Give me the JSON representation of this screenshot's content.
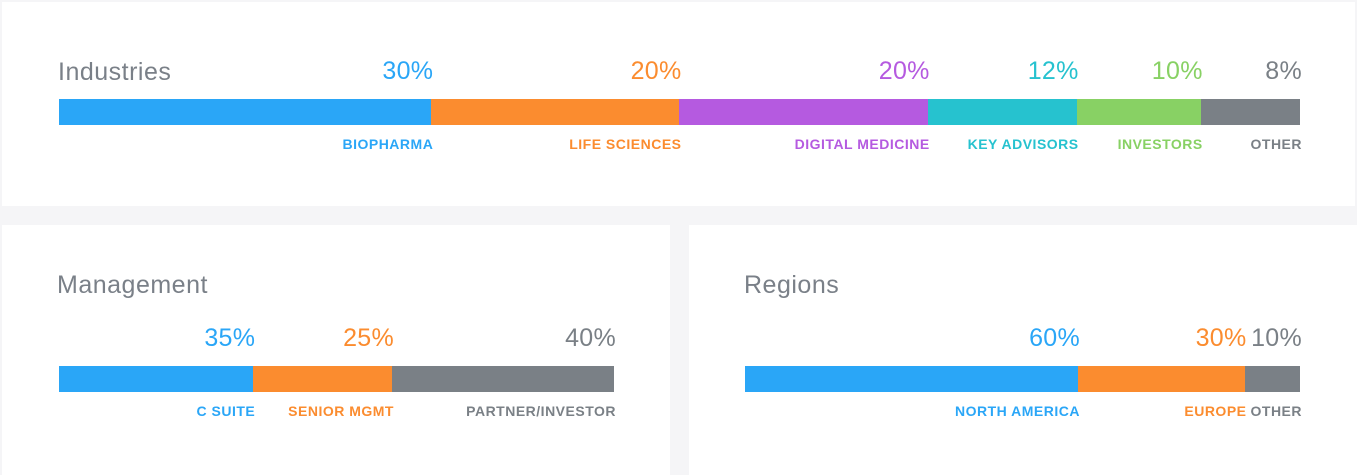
{
  "colors": {
    "blue": "#2aa6f7",
    "orange": "#fb8c2f",
    "purple": "#b55ae0",
    "teal": "#26c2cf",
    "green": "#88d164",
    "gray": "#7a8086"
  },
  "chart_data": [
    {
      "type": "bar",
      "orientation": "horizontal-stacked",
      "title": "Industries",
      "categories": [
        "BIOPHARMA",
        "LIFE SCIENCES",
        "DIGITAL MEDICINE",
        "KEY ADVISORS",
        "INVESTORS",
        "OTHER"
      ],
      "values": [
        30,
        20,
        20,
        12,
        10,
        8
      ],
      "value_labels": [
        "30%",
        "20%",
        "20%",
        "12%",
        "10%",
        "8%"
      ],
      "colors": [
        "#2aa6f7",
        "#fb8c2f",
        "#b55ae0",
        "#26c2cf",
        "#88d164",
        "#7a8086"
      ]
    },
    {
      "type": "bar",
      "orientation": "horizontal-stacked",
      "title": "Management",
      "categories": [
        "C SUITE",
        "SENIOR MGMT",
        "PARTNER/INVESTOR"
      ],
      "values": [
        35,
        25,
        40
      ],
      "value_labels": [
        "35%",
        "25%",
        "40%"
      ],
      "colors": [
        "#2aa6f7",
        "#fb8c2f",
        "#7a8086"
      ]
    },
    {
      "type": "bar",
      "orientation": "horizontal-stacked",
      "title": "Regions",
      "categories": [
        "NORTH AMERICA",
        "EUROPE",
        "OTHER"
      ],
      "values": [
        60,
        30,
        10
      ],
      "value_labels": [
        "60%",
        "30%",
        "10%"
      ],
      "colors": [
        "#2aa6f7",
        "#fb8c2f",
        "#7a8086"
      ]
    }
  ]
}
